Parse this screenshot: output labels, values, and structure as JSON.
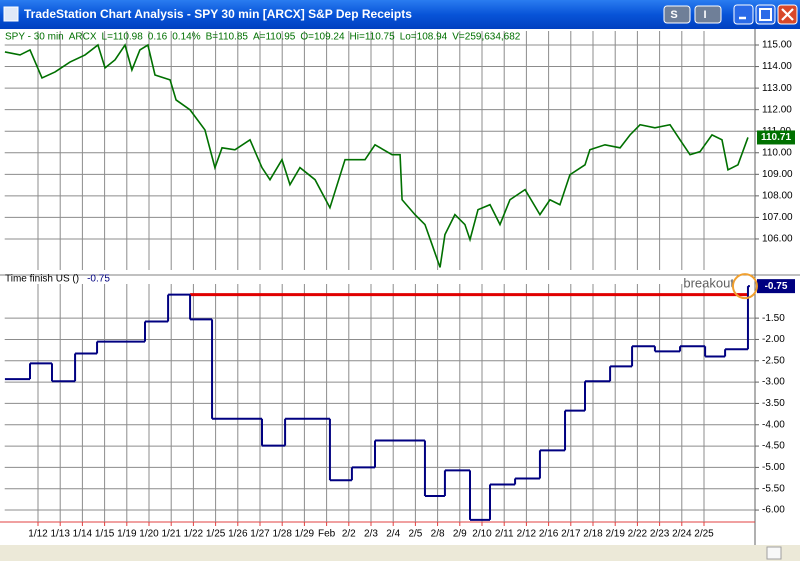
{
  "window": {
    "title": "TradeStation Chart Analysis - SPY 30 min [ARCX] S&P Dep Receipts",
    "buttons": [
      "S",
      "I"
    ]
  },
  "chart_data": [
    {
      "type": "line",
      "header": [
        "SPY - 30 min",
        "ARCX",
        "L=110.98",
        "0.16",
        "0.14%",
        "B=110.85",
        "A=110.95",
        "O=109.24",
        "Hi=110.75",
        "Lo=108.94",
        "V=259,634,682"
      ],
      "series": [
        {
          "color": "#007000",
          "x": [
            -1.49,
            -0.81,
            -0.36,
            0.18,
            0.77,
            1.44,
            2.12,
            2.7,
            3.02,
            3.47,
            3.92,
            4.23,
            4.59,
            4.95,
            5.27,
            5.95,
            6.22,
            6.85,
            7.52,
            7.97,
            8.29,
            8.87,
            9.55,
            10.09,
            10.45,
            10.99,
            11.35,
            11.8,
            12.48,
            13.15,
            13.83,
            14.73,
            15.18,
            15.95,
            16.31,
            16.4,
            16.98,
            17.43,
            17.75,
            18.11,
            18.33,
            18.78,
            19.23,
            19.46,
            19.82,
            20.36,
            20.81,
            21.26,
            21.94,
            22.61,
            23.06,
            23.51,
            23.96,
            24.64,
            24.86,
            25.54,
            26.22,
            26.67,
            27.12,
            27.79,
            28.47,
            28.92,
            29.37,
            29.82,
            30.36,
            30.81,
            31.08,
            31.53,
            31.98
          ],
          "values": [
            114.68,
            114.54,
            114.77,
            113.47,
            113.75,
            114.21,
            114.54,
            115.0,
            113.94,
            114.31,
            115.0,
            113.84,
            114.77,
            115.0,
            113.61,
            113.38,
            112.45,
            111.99,
            111.06,
            109.31,
            110.23,
            110.14,
            110.6,
            109.31,
            108.75,
            109.68,
            108.52,
            109.31,
            108.75,
            107.45,
            109.68,
            109.68,
            110.37,
            109.91,
            109.91,
            107.82,
            107.13,
            106.67,
            105.74,
            104.68,
            106.2,
            107.13,
            106.67,
            105.97,
            107.36,
            107.59,
            106.67,
            107.82,
            108.29,
            107.13,
            107.82,
            107.59,
            108.98,
            109.44,
            110.14,
            110.37,
            110.23,
            110.83,
            111.3,
            111.16,
            111.3,
            110.6,
            109.91,
            110.05,
            110.83,
            110.6,
            109.21,
            109.44,
            110.71
          ]
        }
      ],
      "xlim": [
        -1.5,
        32
      ],
      "ylim": [
        104.56,
        115.65
      ],
      "yticks": [
        {
          "value": 106,
          "label": "106.00"
        },
        {
          "value": 107,
          "label": "107.00"
        },
        {
          "value": 108,
          "label": "108.00"
        },
        {
          "value": 109,
          "label": "109.00"
        },
        {
          "value": 110,
          "label": "110.00"
        },
        {
          "value": 111,
          "label": "111.00"
        },
        {
          "value": 112,
          "label": "112.00"
        },
        {
          "value": 113,
          "label": "113.00"
        },
        {
          "value": 114,
          "label": "114.00"
        },
        {
          "value": 115,
          "label": "115.00"
        }
      ],
      "grid": true
    },
    {
      "type": "step",
      "header": "Time finish US ()",
      "series": [
        {
          "color": "#000080",
          "x": [
            -1.49,
            -0.36,
            0.63,
            1.67,
            2.66,
            4.82,
            5.86,
            6.85,
            7.84,
            10.09,
            11.13,
            13.15,
            14.14,
            15.18,
            17.43,
            18.33,
            19.46,
            20.36,
            21.49,
            22.61,
            23.74,
            24.64,
            25.77,
            26.76,
            27.79,
            28.92,
            30.05,
            30.95,
            31.98
          ],
          "values": [
            -2.93,
            -2.56,
            -2.98,
            -2.33,
            -2.05,
            -1.58,
            -0.95,
            -1.53,
            -3.86,
            -4.49,
            -3.86,
            -5.3,
            -5.0,
            -4.37,
            -5.67,
            -5.07,
            -6.23,
            -5.4,
            -5.26,
            -4.6,
            -3.67,
            -2.98,
            -2.63,
            -2.16,
            -2.28,
            -2.16,
            -2.4,
            -2.23,
            -0.75
          ]
        }
      ],
      "xlim": [
        -1.5,
        32
      ],
      "ylim": [
        -6.28,
        -0.7
      ],
      "yticks": [
        {
          "value": -1.5,
          "label": "-1.50"
        },
        {
          "value": -2,
          "label": "-2.00"
        },
        {
          "value": -2.5,
          "label": "-2.50"
        },
        {
          "value": -3,
          "label": "-3.00"
        },
        {
          "value": -3.5,
          "label": "-3.50"
        },
        {
          "value": -4,
          "label": "-4.00"
        },
        {
          "value": -4.5,
          "label": "-4.50"
        },
        {
          "value": -5,
          "label": "-5.00"
        },
        {
          "value": -5.5,
          "label": "-5.50"
        },
        {
          "value": -6,
          "label": "-6.00"
        }
      ],
      "xticks": [
        {
          "value": 0,
          "label": "1/12"
        },
        {
          "value": 1,
          "label": "1/13"
        },
        {
          "value": 2,
          "label": "1/14"
        },
        {
          "value": 3,
          "label": "1/15"
        },
        {
          "value": 4,
          "label": "1/19"
        },
        {
          "value": 5,
          "label": "1/20"
        },
        {
          "value": 6,
          "label": "1/21"
        },
        {
          "value": 7,
          "label": "1/22"
        },
        {
          "value": 8,
          "label": "1/25"
        },
        {
          "value": 9,
          "label": "1/26"
        },
        {
          "value": 10,
          "label": "1/27"
        },
        {
          "value": 11,
          "label": "1/28"
        },
        {
          "value": 12,
          "label": "1/29"
        },
        {
          "value": 13,
          "label": "Feb"
        },
        {
          "value": 14,
          "label": "2/2"
        },
        {
          "value": 15,
          "label": "2/3"
        },
        {
          "value": 16,
          "label": "2/4"
        },
        {
          "value": 17,
          "label": "2/5"
        },
        {
          "value": 18,
          "label": "2/8"
        },
        {
          "value": 19,
          "label": "2/9"
        },
        {
          "value": 20,
          "label": "2/10"
        },
        {
          "value": 21,
          "label": "2/11"
        },
        {
          "value": 22,
          "label": "2/12"
        },
        {
          "value": 23,
          "label": "2/16"
        },
        {
          "value": 24,
          "label": "2/17"
        },
        {
          "value": 25,
          "label": "2/18"
        },
        {
          "value": 26,
          "label": "2/19"
        },
        {
          "value": 27,
          "label": "2/22"
        },
        {
          "value": 28,
          "label": "2/23"
        },
        {
          "value": 29,
          "label": "2/24"
        },
        {
          "value": 30,
          "label": "2/25"
        }
      ],
      "reference_line": {
        "value": -0.95,
        "x": [
          6.85,
          32
        ],
        "color": "#e00000"
      },
      "annotation": "breakout",
      "grid": true
    }
  ]
}
